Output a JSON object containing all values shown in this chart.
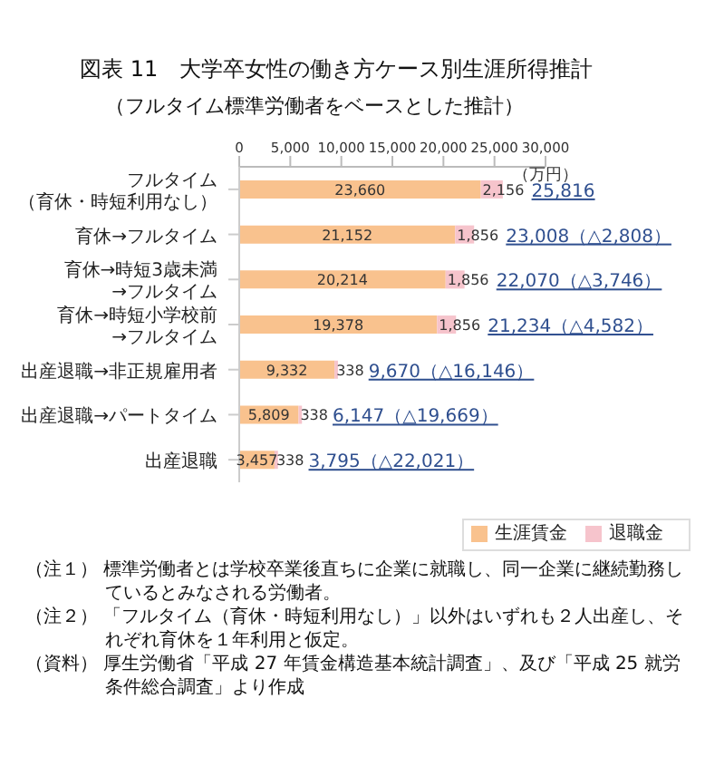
{
  "chart_data": {
    "type": "bar",
    "orientation": "horizontal",
    "stacked": true,
    "title": "図表 11　大学卒女性の働き方ケース別生涯所得推計",
    "subtitle": "（フルタイム標準労働者をベースとした推計）",
    "xlabel": "（万円）",
    "categories": [
      "フルタイム（育休・時短利用なし）",
      "育休→フルタイム",
      "育休→時短3歳未満→フルタイム",
      "育休→時短小学校前→フルタイム",
      "出産退職→非正規雇用者",
      "出産退職→パートタイム",
      "出産退職"
    ],
    "series": [
      {
        "name": "生涯賃金",
        "color": "#f9c28e",
        "values": [
          23660,
          21152,
          20214,
          19378,
          9332,
          5809,
          3457
        ],
        "value_labels": [
          "23,660",
          "21,152",
          "20,214",
          "19,378",
          "9,332",
          "5,809",
          "3,457"
        ]
      },
      {
        "name": "退職金",
        "color": "#f6c4cc",
        "values": [
          2156,
          1856,
          1856,
          1856,
          338,
          338,
          338
        ],
        "value_labels": [
          "2,156",
          "1,856",
          "1,856",
          "1,856",
          "338",
          "338",
          "338"
        ]
      }
    ],
    "totals": [
      "25,816",
      "23,008（△2,808）",
      "22,070（△3,746）",
      "21,234（△4,582）",
      "9,670（△16,146）",
      "6,147（△19,669）",
      "3,795（△22,021）"
    ],
    "xlim": [
      0,
      30000
    ],
    "xticks": [
      {
        "value": 0,
        "label": "0"
      },
      {
        "value": 5000,
        "label": "5,000"
      },
      {
        "value": 10000,
        "label": "10,000"
      },
      {
        "value": 15000,
        "label": "15,000"
      },
      {
        "value": 20000,
        "label": "20,000"
      },
      {
        "value": 25000,
        "label": "25,000"
      },
      {
        "value": 30000,
        "label": "30,000"
      }
    ],
    "legend": "bottom right",
    "annotations": [
      "（注１） 標準労働者とは学校卒業後直ちに企業に就職し、同一企業に継続勤務しているとみなされる労働者。",
      "（注２） 「フルタイム（育休・時短利用なし）」以外はいずれも２人出産し、それぞれ育休を１年利用と仮定。",
      "（資料） 厚生労働省「平成 27 年賃金構造基本統計調査」、及び「平成 25 就労条件総合調査」より作成"
    ]
  }
}
